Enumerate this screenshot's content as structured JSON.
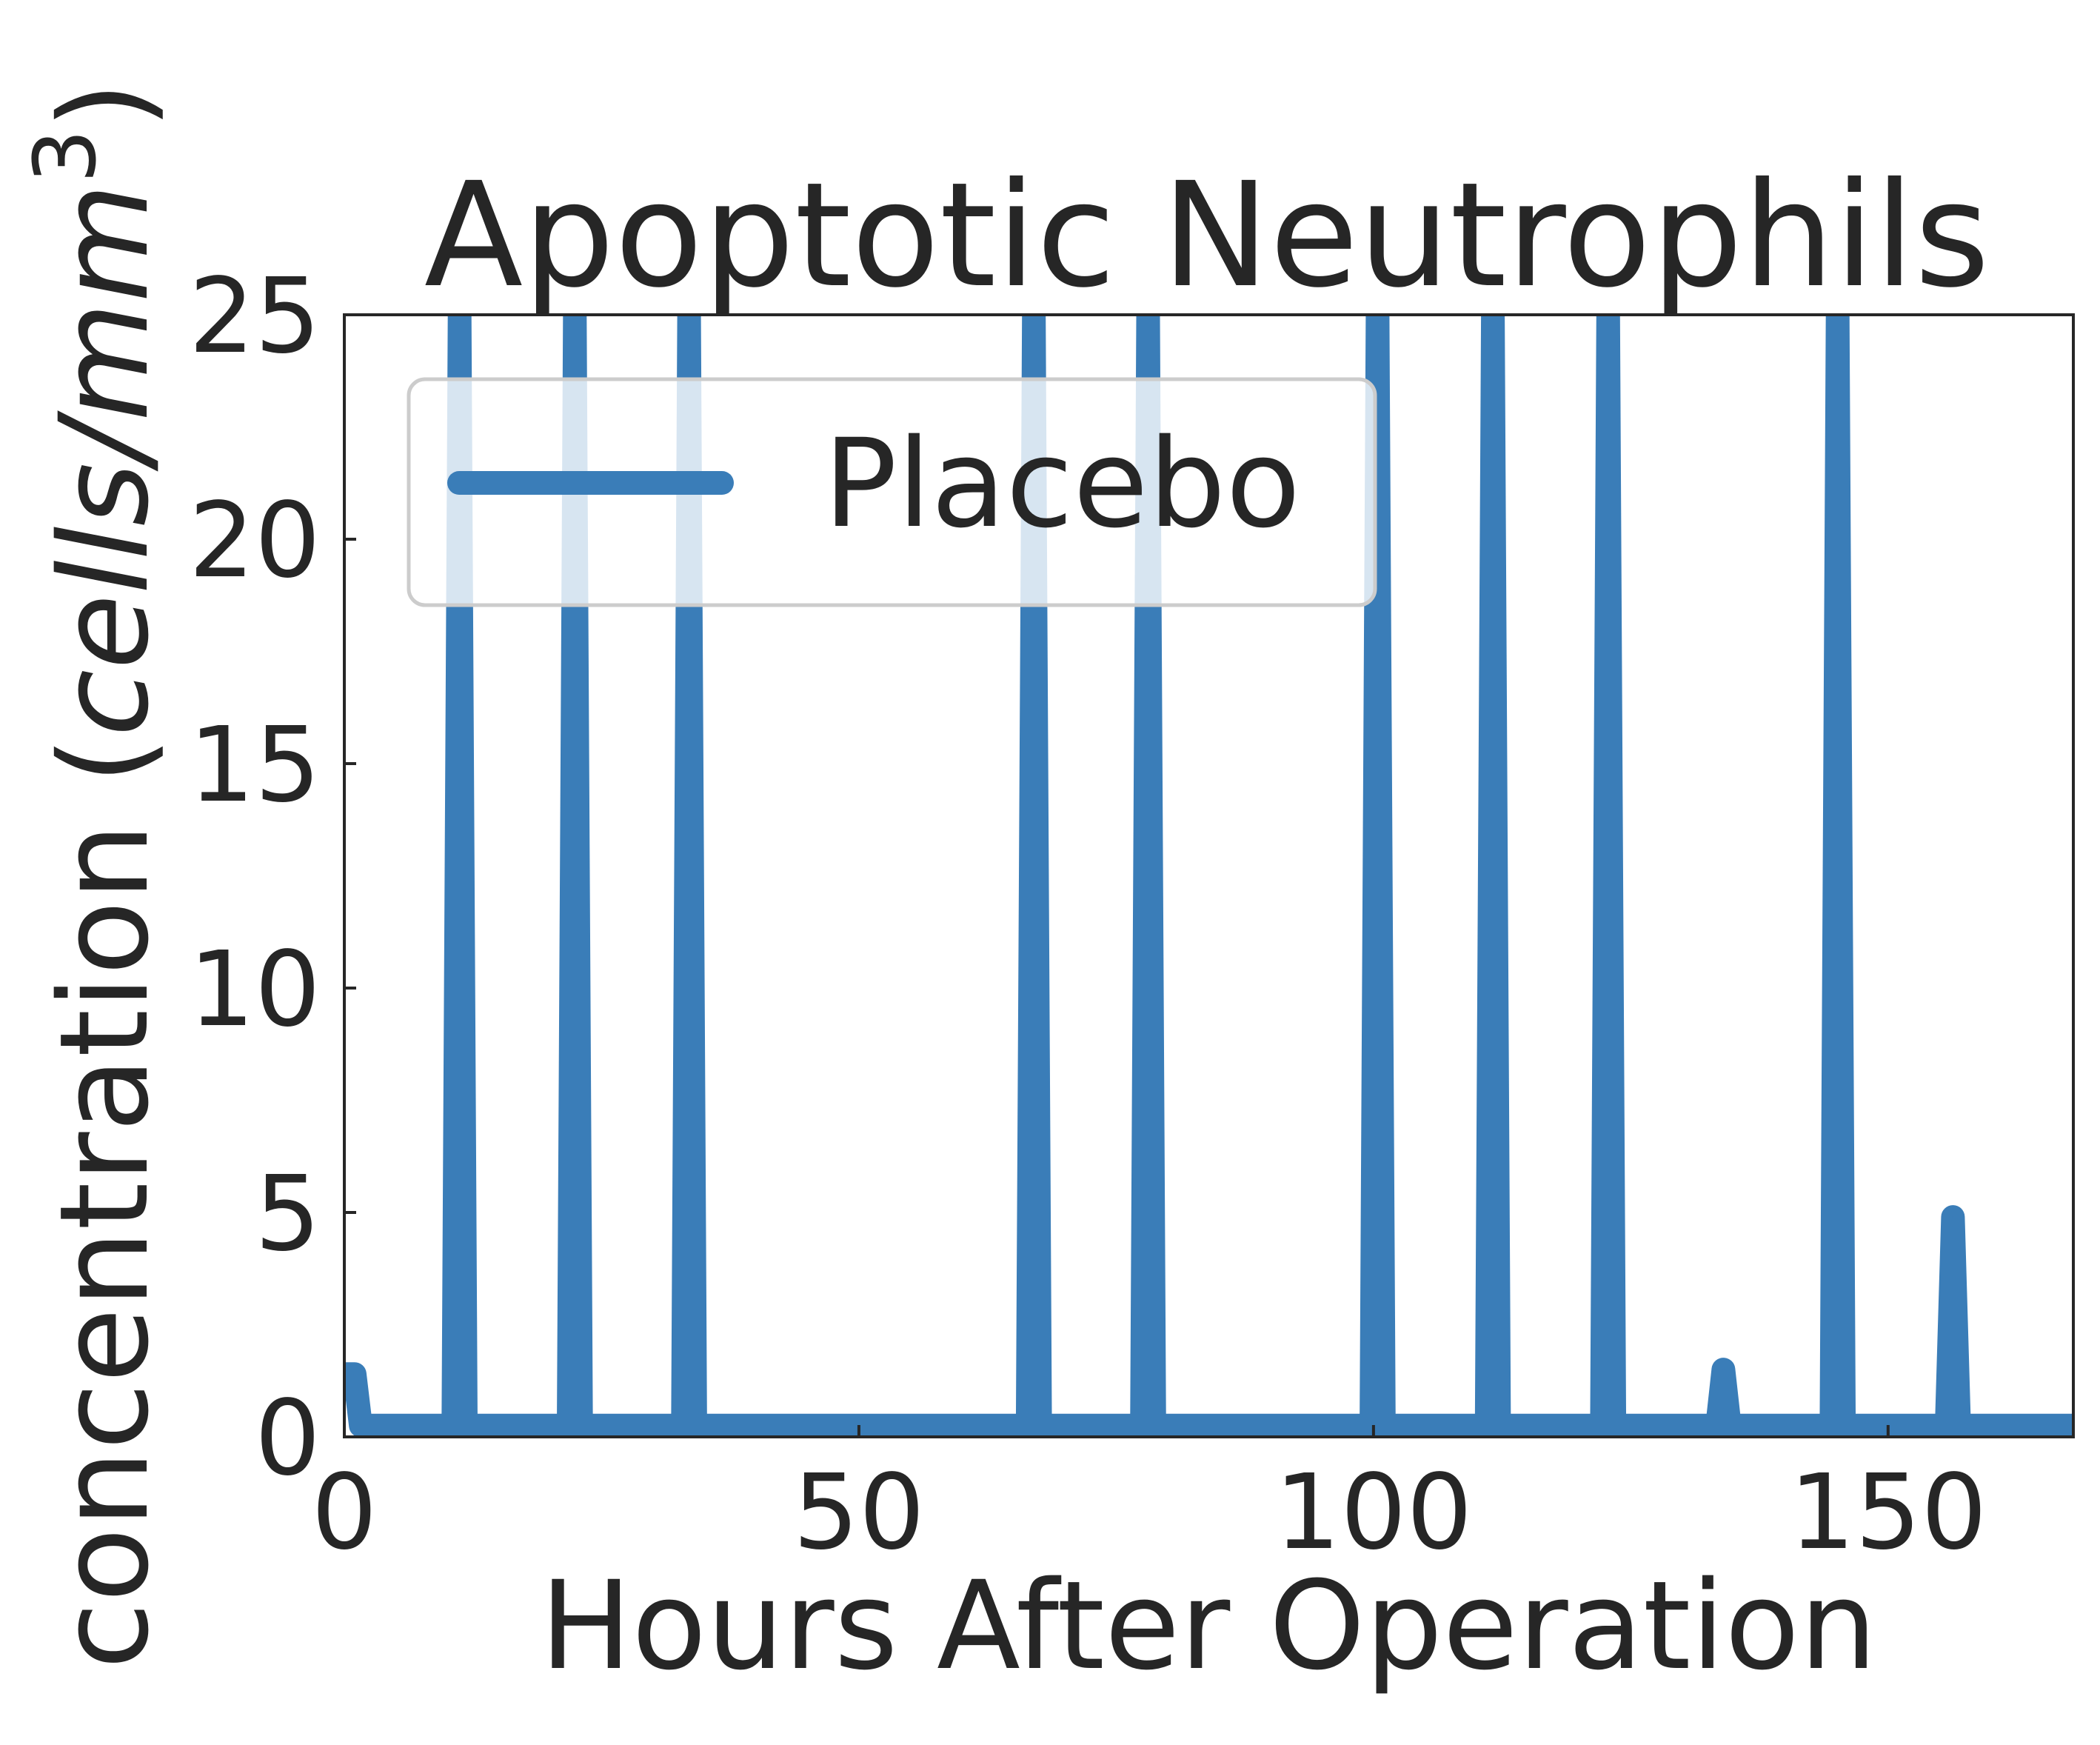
{
  "chart_data": {
    "type": "line",
    "title": "Apoptotic Neutrophils",
    "xlabel": "Hours After Operation",
    "ylabel_main": "concentration (",
    "ylabel_unit": "cells/mm",
    "ylabel_exponent": "3",
    "ylabel_close": ")",
    "xlim": [
      0,
      168
    ],
    "ylim": [
      0,
      25
    ],
    "xticks": [
      0,
      50,
      100,
      150
    ],
    "xtick_labels": [
      "0",
      "50",
      "100",
      "150"
    ],
    "yticks": [
      0,
      5,
      10,
      15,
      20,
      25
    ],
    "ytick_labels": [
      "0",
      "5",
      "10",
      "15",
      "20",
      "25"
    ],
    "grid": false,
    "legend_position": "upper-left",
    "series": [
      {
        "name": "Placebo",
        "color": "#3a7db8",
        "baseline": 0.25,
        "spikes": [
          {
            "x": 1.0,
            "y": 1.4
          },
          {
            "x": 11.2,
            "y": 25
          },
          {
            "x": 22.4,
            "y": 25
          },
          {
            "x": 33.5,
            "y": 25
          },
          {
            "x": 67.0,
            "y": 25
          },
          {
            "x": 78.1,
            "y": 25
          },
          {
            "x": 100.4,
            "y": 25
          },
          {
            "x": 111.6,
            "y": 25
          },
          {
            "x": 122.8,
            "y": 25
          },
          {
            "x": 134.0,
            "y": 1.5
          },
          {
            "x": 145.1,
            "y": 25
          },
          {
            "x": 156.3,
            "y": 4.9
          }
        ]
      }
    ]
  }
}
